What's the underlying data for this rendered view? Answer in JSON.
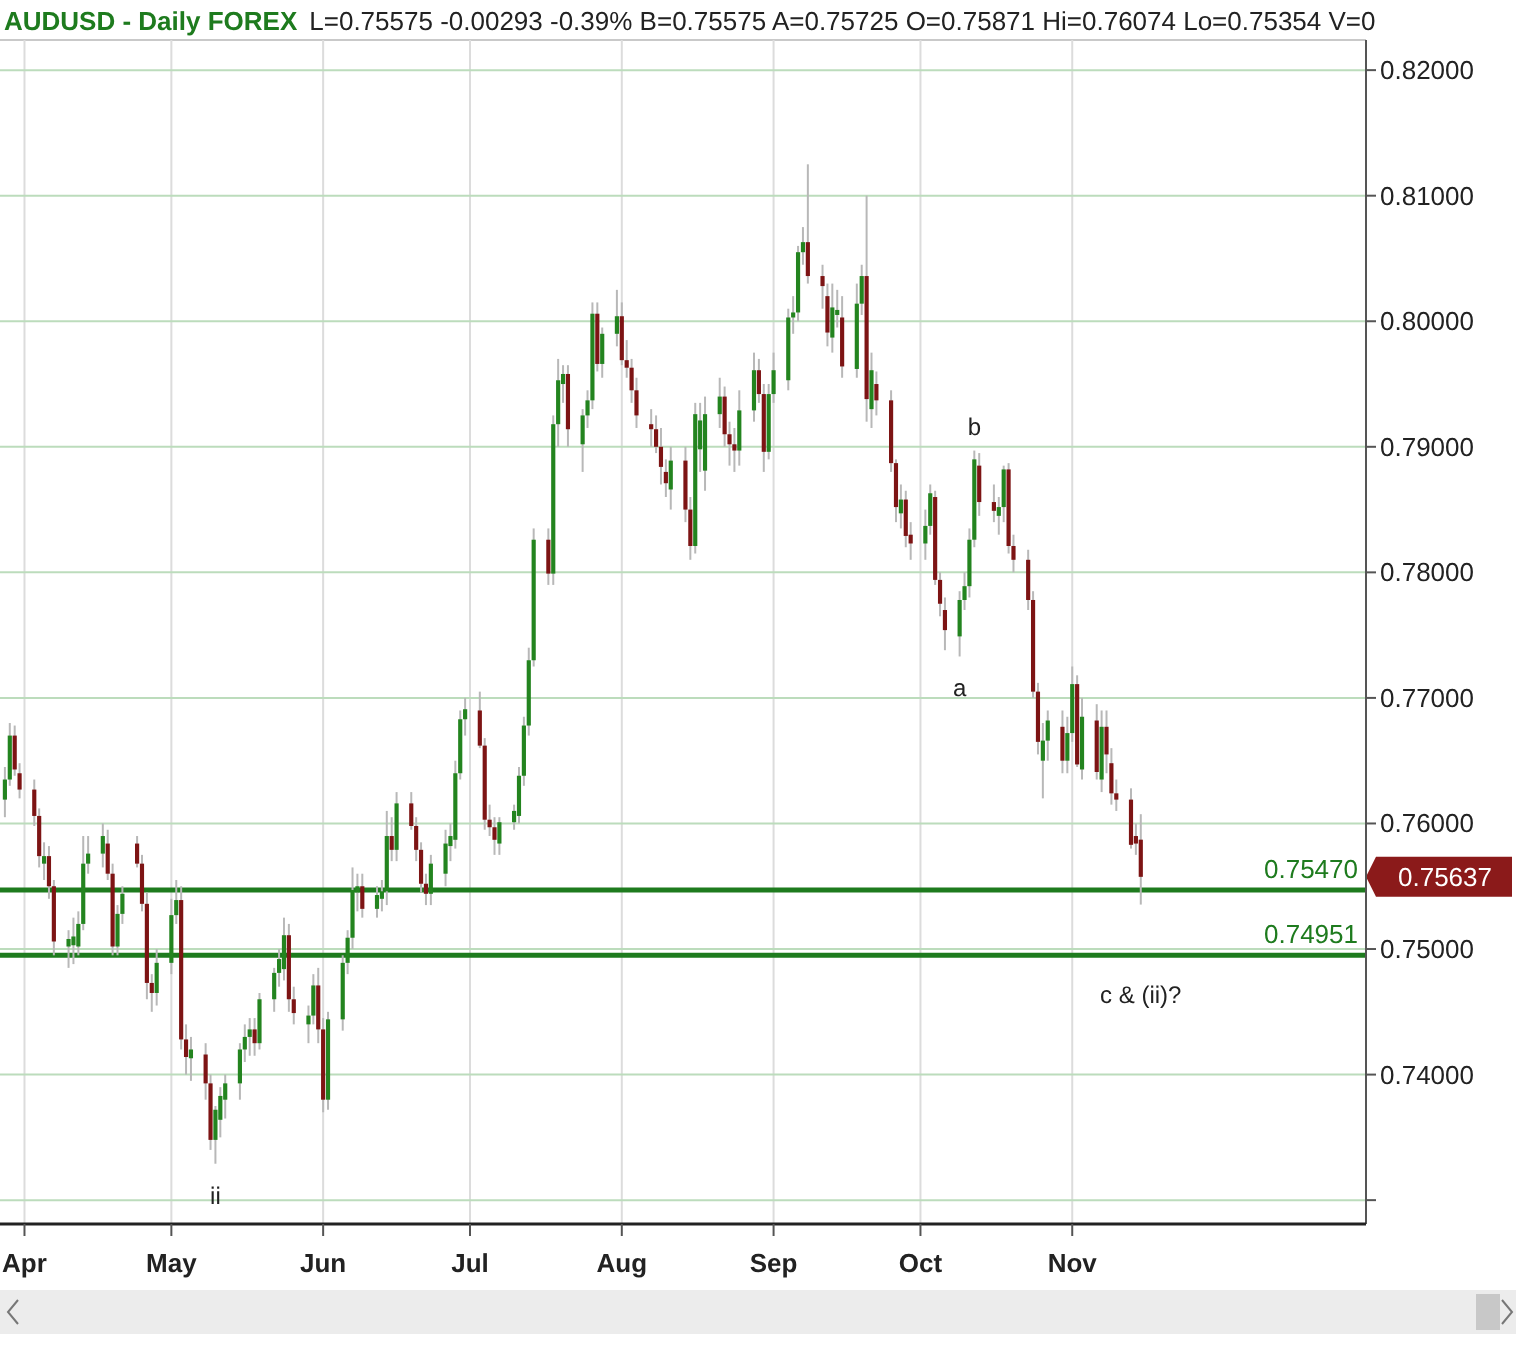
{
  "chart_data": {
    "type": "candlestick",
    "title": "AUDUSD - Daily FOREX",
    "subtitle": "L=0.75575 -0.00293 -0.39% B=0.75575 A=0.75725 O=0.75871 Hi=0.76074 Lo=0.75354 V=0",
    "colors": [
      "#23841f",
      "#23841f",
      "#7d1414",
      "#7d1414",
      "#7d1414",
      "#7d1414",
      "#23841f",
      "#7d1414",
      "#7d1414",
      "#23841f",
      "#23841f",
      "#23841f",
      "#23841f",
      "#23841f",
      "#23841f",
      "#7d1414",
      "#7d1414",
      "#23841f",
      "#23841f",
      "#7d1414",
      "#7d1414",
      "#7d1414",
      "#7d1414",
      "#23841f",
      "#23841f",
      "#23841f",
      "#7d1414",
      "#7d1414",
      "#23841f",
      "#7d1414",
      "#7d1414",
      "#23841f",
      "#23841f",
      "#23841f",
      "#23841f",
      "#23841f",
      "#23841f",
      "#7d1414",
      "#23841f",
      "#23841f",
      "#23841f",
      "#23841f",
      "#7d1414",
      "#7d1414",
      "#23841f",
      "#23841f",
      "#7d1414",
      "#7d1414",
      "#23841f",
      "#23841f",
      "#23841f",
      "#23841f",
      "#23841f",
      "#7d1414",
      "#23841f",
      "#23841f",
      "#23841f",
      "#7d1414",
      "#23841f",
      "#7d1414",
      "#7d1414",
      "#7d1414",
      "#7d1414",
      "#23841f",
      "#23841f",
      "#23841f",
      "#23841f",
      "#23841f",
      "#23841f",
      "#7d1414",
      "#7d1414",
      "#7d1414",
      "#7d1414",
      "#23841f",
      "#23841f",
      "#23841f",
      "#23841f",
      "#23841f",
      "#23841f",
      "#7d1414",
      "#23841f",
      "#23841f",
      "#23841f",
      "#7d1414",
      "#23841f",
      "#23841f",
      "#23841f",
      "#7d1414",
      "#23841f",
      "#23841f",
      "#7d1414",
      "#7d1414",
      "#7d1414",
      "#7d1414",
      "#7d1414",
      "#7d1414",
      "#7d1414",
      "#7d1414",
      "#23841f",
      "#7d1414",
      "#7d1414",
      "#23841f",
      "#23841f",
      "#23841f",
      "#23841f",
      "#7d1414",
      "#7d1414",
      "#7d1414",
      "#23841f",
      "#23841f",
      "#7d1414",
      "#7d1414",
      "#23841f",
      "#23841f",
      "#23841f",
      "#23841f",
      "#23841f",
      "#23841f",
      "#7d1414",
      "#7d1414",
      "#7d1414",
      "#23841f",
      "#23841f",
      "#7d1414",
      "#23841f",
      "#23841f",
      "#7d1414",
      "#23841f",
      "#7d1414",
      "#7d1414",
      "#7d1414",
      "#23841f",
      "#7d1414",
      "#7d1414",
      "#23841f",
      "#23841f",
      "#7d1414",
      "#7d1414",
      "#7d1414",
      "#23841f",
      "#23841f",
      "#23841f",
      "#23841f",
      "#7d1414",
      "#7d1414",
      "#23841f",
      "#23841f",
      "#7d1414",
      "#7d1414",
      "#7d1414",
      "#7d1414",
      "#7d1414",
      "#23841f",
      "#23841f",
      "#7d1414",
      "#23841f",
      "#23841f",
      "#7d1414",
      "#23841f",
      "#7d1414",
      "#23841f",
      "#7d1414",
      "#7d1414",
      "#7d1414",
      "#7d1414",
      "#7d1414",
      "#7d1414"
    ],
    "x": [
      "--03-28",
      "--03-29",
      "--03-30",
      "--03-31",
      "--04-03",
      "--04-04",
      "--04-05",
      "--04-06",
      "--04-07",
      "--04-10",
      "--04-11",
      "--04-12",
      "--04-13",
      "--04-14",
      "--04-17",
      "--04-18",
      "--04-19",
      "--04-20",
      "--04-21",
      "--04-24",
      "--04-25",
      "--04-26",
      "--04-27",
      "--04-28",
      "--05-01",
      "--05-02",
      "--05-03",
      "--05-04",
      "--05-05",
      "--05-08",
      "--05-09",
      "--05-10",
      "--05-11",
      "--05-12",
      "--05-15",
      "--05-16",
      "--05-17",
      "--05-18",
      "--05-19",
      "--05-22",
      "--05-23",
      "--05-24",
      "--05-25",
      "--05-26",
      "--05-29",
      "--05-30",
      "--05-31",
      "--06-01",
      "--06-02",
      "--06-05",
      "--06-06",
      "--06-07",
      "--06-08",
      "--06-09",
      "--06-12",
      "--06-13",
      "--06-14",
      "--06-15",
      "--06-16",
      "--06-19",
      "--06-20",
      "--06-21",
      "--06-22",
      "--06-23",
      "--06-26",
      "--06-27",
      "--06-28",
      "--06-29",
      "--06-30",
      "--07-03",
      "--07-04",
      "--07-05",
      "--07-06",
      "--07-07",
      "--07-10",
      "--07-11",
      "--07-12",
      "--07-13",
      "--07-14",
      "--07-17",
      "--07-18",
      "--07-19",
      "--07-20",
      "--07-21",
      "--07-24",
      "--07-25",
      "--07-26",
      "--07-27",
      "--07-28",
      "--07-31",
      "--08-01",
      "--08-02",
      "--08-03",
      "--08-04",
      "--08-07",
      "--08-08",
      "--08-09",
      "--08-10",
      "--08-11",
      "--08-14",
      "--08-15",
      "--08-16",
      "--08-17",
      "--08-18",
      "--08-21",
      "--08-22",
      "--08-23",
      "--08-24",
      "--08-25",
      "--08-28",
      "--08-29",
      "--08-30",
      "--08-31",
      "--09-01",
      "--09-04",
      "--09-05",
      "--09-06",
      "--09-07",
      "--09-08",
      "--09-11",
      "--09-12",
      "--09-13",
      "--09-14",
      "--09-15",
      "--09-18",
      "--09-19",
      "--09-20",
      "--09-21",
      "--09-22",
      "--09-25",
      "--09-26",
      "--09-27",
      "--09-28",
      "--09-29",
      "--10-02",
      "--10-03",
      "--10-04",
      "--10-05",
      "--10-06",
      "--10-09",
      "--10-10",
      "--10-11",
      "--10-12",
      "--10-13",
      "--10-16",
      "--10-17",
      "--10-18",
      "--10-19",
      "--10-20",
      "--10-23",
      "--10-24",
      "--10-25",
      "--10-26",
      "--10-27",
      "--10-30",
      "--10-31",
      "--11-01",
      "--11-02",
      "--11-03",
      "--11-06",
      "--11-07",
      "--11-08",
      "--11-09",
      "--11-10",
      "--11-13",
      "--11-14",
      "--11-15"
    ],
    "ohlc": [
      [
        0.7619,
        0.7645,
        0.7605,
        0.7635
      ],
      [
        0.7635,
        0.768,
        0.763,
        0.767
      ],
      [
        0.767,
        0.7678,
        0.7638,
        0.7643
      ],
      [
        0.764,
        0.7648,
        0.762,
        0.7627
      ],
      [
        0.7627,
        0.7635,
        0.7598,
        0.7606
      ],
      [
        0.7606,
        0.7612,
        0.7565,
        0.7574
      ],
      [
        0.7568,
        0.7585,
        0.7555,
        0.7574
      ],
      [
        0.7574,
        0.7582,
        0.754,
        0.755
      ],
      [
        0.755,
        0.7555,
        0.7495,
        0.7506
      ],
      [
        0.7502,
        0.7515,
        0.7485,
        0.7508
      ],
      [
        0.7503,
        0.7525,
        0.7488,
        0.751
      ],
      [
        0.7502,
        0.753,
        0.7495,
        0.752
      ],
      [
        0.752,
        0.759,
        0.7515,
        0.7568
      ],
      [
        0.7568,
        0.759,
        0.756,
        0.7576
      ],
      [
        0.7576,
        0.76,
        0.7565,
        0.759
      ],
      [
        0.7584,
        0.7595,
        0.7555,
        0.756
      ],
      [
        0.756,
        0.7568,
        0.7495,
        0.7502
      ],
      [
        0.7502,
        0.7535,
        0.7495,
        0.7528
      ],
      [
        0.7528,
        0.755,
        0.752,
        0.7544
      ],
      [
        0.7584,
        0.759,
        0.7565,
        0.7568
      ],
      [
        0.7568,
        0.7575,
        0.753,
        0.7536
      ],
      [
        0.7536,
        0.7545,
        0.746,
        0.7473
      ],
      [
        0.7473,
        0.748,
        0.745,
        0.7465
      ],
      [
        0.7465,
        0.75,
        0.7455,
        0.7489
      ],
      [
        0.7489,
        0.754,
        0.748,
        0.7527
      ],
      [
        0.7527,
        0.7555,
        0.752,
        0.7539
      ],
      [
        0.7539,
        0.755,
        0.742,
        0.7428
      ],
      [
        0.7428,
        0.744,
        0.74,
        0.7414
      ],
      [
        0.7413,
        0.743,
        0.7395,
        0.742
      ],
      [
        0.7416,
        0.7425,
        0.738,
        0.7393
      ],
      [
        0.7393,
        0.74,
        0.734,
        0.7348
      ],
      [
        0.7348,
        0.7375,
        0.7329,
        0.7372
      ],
      [
        0.7364,
        0.739,
        0.735,
        0.7383
      ],
      [
        0.738,
        0.74,
        0.7365,
        0.7393
      ],
      [
        0.7393,
        0.7425,
        0.738,
        0.742
      ],
      [
        0.742,
        0.744,
        0.741,
        0.743
      ],
      [
        0.743,
        0.7445,
        0.7415,
        0.7436
      ],
      [
        0.7436,
        0.7445,
        0.7415,
        0.7425
      ],
      [
        0.7425,
        0.7465,
        0.742,
        0.746
      ],
      [
        0.746,
        0.7485,
        0.745,
        0.7481
      ],
      [
        0.7481,
        0.75,
        0.747,
        0.7492
      ],
      [
        0.7484,
        0.7525,
        0.7475,
        0.7511
      ],
      [
        0.7511,
        0.752,
        0.745,
        0.746
      ],
      [
        0.746,
        0.747,
        0.744,
        0.7449
      ],
      [
        0.744,
        0.7455,
        0.7425,
        0.7447
      ],
      [
        0.7447,
        0.748,
        0.744,
        0.7471
      ],
      [
        0.7471,
        0.7485,
        0.7425,
        0.7436
      ],
      [
        0.7436,
        0.7445,
        0.737,
        0.738
      ],
      [
        0.738,
        0.745,
        0.7372,
        0.7444
      ],
      [
        0.7444,
        0.7495,
        0.7435,
        0.7489
      ],
      [
        0.7489,
        0.7515,
        0.748,
        0.7509
      ],
      [
        0.7509,
        0.7565,
        0.75,
        0.7547
      ],
      [
        0.7545,
        0.756,
        0.753,
        0.755
      ],
      [
        0.755,
        0.756,
        0.7525,
        0.7532
      ],
      [
        0.7532,
        0.755,
        0.7525,
        0.7543
      ],
      [
        0.754,
        0.7555,
        0.753,
        0.7546
      ],
      [
        0.7546,
        0.761,
        0.7535,
        0.759
      ],
      [
        0.759,
        0.7605,
        0.757,
        0.7579
      ],
      [
        0.7579,
        0.7625,
        0.757,
        0.7616
      ],
      [
        0.7616,
        0.7625,
        0.7595,
        0.7598
      ],
      [
        0.7598,
        0.7605,
        0.757,
        0.7579
      ],
      [
        0.7579,
        0.7585,
        0.7545,
        0.7552
      ],
      [
        0.7552,
        0.756,
        0.7535,
        0.7544
      ],
      [
        0.7544,
        0.7575,
        0.7535,
        0.7568
      ],
      [
        0.756,
        0.7595,
        0.755,
        0.7584
      ],
      [
        0.7582,
        0.76,
        0.757,
        0.759
      ],
      [
        0.7587,
        0.765,
        0.758,
        0.764
      ],
      [
        0.764,
        0.769,
        0.7635,
        0.7683
      ],
      [
        0.7683,
        0.77,
        0.767,
        0.7691
      ],
      [
        0.769,
        0.7705,
        0.766,
        0.7662
      ],
      [
        0.7662,
        0.7668,
        0.7595,
        0.7603
      ],
      [
        0.7603,
        0.7615,
        0.759,
        0.7597
      ],
      [
        0.7597,
        0.7605,
        0.7575,
        0.7587
      ],
      [
        0.7584,
        0.7605,
        0.7575,
        0.7601
      ],
      [
        0.7601,
        0.7615,
        0.7595,
        0.761
      ],
      [
        0.7606,
        0.7645,
        0.76,
        0.7638
      ],
      [
        0.7638,
        0.7685,
        0.763,
        0.7678
      ],
      [
        0.7678,
        0.774,
        0.767,
        0.773
      ],
      [
        0.773,
        0.7835,
        0.7725,
        0.7826
      ],
      [
        0.7826,
        0.7835,
        0.779,
        0.7799
      ],
      [
        0.7799,
        0.7925,
        0.779,
        0.7918
      ],
      [
        0.7918,
        0.797,
        0.79,
        0.7953
      ],
      [
        0.795,
        0.7965,
        0.7935,
        0.7958
      ],
      [
        0.7958,
        0.7965,
        0.79,
        0.7914
      ],
      [
        0.7902,
        0.793,
        0.788,
        0.7925
      ],
      [
        0.7925,
        0.7945,
        0.7915,
        0.7937
      ],
      [
        0.7937,
        0.8015,
        0.793,
        0.8006
      ],
      [
        0.8006,
        0.8015,
        0.796,
        0.7966
      ],
      [
        0.7966,
        0.7995,
        0.7955,
        0.799
      ],
      [
        0.799,
        0.8025,
        0.798,
        0.8004
      ],
      [
        0.8004,
        0.8015,
        0.7965,
        0.7969
      ],
      [
        0.7969,
        0.7985,
        0.7955,
        0.7963
      ],
      [
        0.7963,
        0.797,
        0.7935,
        0.7945
      ],
      [
        0.7945,
        0.7955,
        0.7915,
        0.7925
      ],
      [
        0.7918,
        0.793,
        0.79,
        0.7914
      ],
      [
        0.7914,
        0.7925,
        0.7895,
        0.79
      ],
      [
        0.79,
        0.7915,
        0.787,
        0.7884
      ],
      [
        0.788,
        0.789,
        0.786,
        0.7871
      ],
      [
        0.7866,
        0.79,
        0.785,
        0.7889
      ],
      [
        0.7889,
        0.79,
        0.784,
        0.785
      ],
      [
        0.785,
        0.786,
        0.781,
        0.7821
      ],
      [
        0.7821,
        0.7935,
        0.7815,
        0.7926
      ],
      [
        0.7898,
        0.7935,
        0.788,
        0.7921
      ],
      [
        0.7881,
        0.794,
        0.7865,
        0.7926
      ],
      [
        0.7926,
        0.7955,
        0.7915,
        0.794
      ],
      [
        0.794,
        0.7948,
        0.79,
        0.791
      ],
      [
        0.791,
        0.792,
        0.7885,
        0.7902
      ],
      [
        0.7902,
        0.7915,
        0.788,
        0.7897
      ],
      [
        0.7897,
        0.7945,
        0.7885,
        0.7929
      ],
      [
        0.7929,
        0.7975,
        0.792,
        0.7961
      ],
      [
        0.7961,
        0.797,
        0.7935,
        0.7942
      ],
      [
        0.7942,
        0.795,
        0.788,
        0.7896
      ],
      [
        0.7896,
        0.795,
        0.789,
        0.7942
      ],
      [
        0.7942,
        0.7975,
        0.7935,
        0.7961
      ],
      [
        0.7953,
        0.801,
        0.7945,
        0.8003
      ],
      [
        0.8003,
        0.802,
        0.799,
        0.8007
      ],
      [
        0.8007,
        0.806,
        0.8,
        0.8055
      ],
      [
        0.8055,
        0.8075,
        0.8045,
        0.8063
      ],
      [
        0.8063,
        0.8125,
        0.803,
        0.8036
      ],
      [
        0.8036,
        0.8045,
        0.801,
        0.8028
      ],
      [
        0.802,
        0.803,
        0.798,
        0.7991
      ],
      [
        0.7987,
        0.803,
        0.7975,
        0.8011
      ],
      [
        0.8005,
        0.8025,
        0.7995,
        0.8009
      ],
      [
        0.8003,
        0.802,
        0.7955,
        0.7964
      ],
      [
        0.7962,
        0.803,
        0.7955,
        0.8014
      ],
      [
        0.8014,
        0.8045,
        0.8005,
        0.8036
      ],
      [
        0.8036,
        0.81,
        0.792,
        0.7938
      ],
      [
        0.793,
        0.7975,
        0.7915,
        0.7961
      ],
      [
        0.795,
        0.796,
        0.7925,
        0.7937
      ],
      [
        0.7937,
        0.7945,
        0.788,
        0.7887
      ],
      [
        0.7887,
        0.789,
        0.784,
        0.7852
      ],
      [
        0.7847,
        0.787,
        0.7835,
        0.7858
      ],
      [
        0.7858,
        0.7865,
        0.782,
        0.7829
      ],
      [
        0.783,
        0.784,
        0.781,
        0.7823
      ],
      [
        0.7823,
        0.785,
        0.781,
        0.7837
      ],
      [
        0.7837,
        0.787,
        0.783,
        0.7863
      ],
      [
        0.786,
        0.7865,
        0.779,
        0.7794
      ],
      [
        0.7794,
        0.78,
        0.7765,
        0.7775
      ],
      [
        0.777,
        0.778,
        0.7738,
        0.7754
      ],
      [
        0.7749,
        0.7785,
        0.7733,
        0.7778
      ],
      [
        0.7778,
        0.78,
        0.777,
        0.7789
      ],
      [
        0.7789,
        0.7835,
        0.778,
        0.7826
      ],
      [
        0.7826,
        0.7897,
        0.782,
        0.789
      ],
      [
        0.7885,
        0.7895,
        0.7845,
        0.7856
      ],
      [
        0.7856,
        0.787,
        0.784,
        0.7849
      ],
      [
        0.7845,
        0.786,
        0.783,
        0.7852
      ],
      [
        0.7852,
        0.7885,
        0.784,
        0.7882
      ],
      [
        0.7882,
        0.7887,
        0.7815,
        0.7821
      ],
      [
        0.7821,
        0.783,
        0.78,
        0.781
      ],
      [
        0.781,
        0.7818,
        0.777,
        0.7778
      ],
      [
        0.7778,
        0.7785,
        0.77,
        0.7705
      ],
      [
        0.7705,
        0.7712,
        0.7655,
        0.7665
      ],
      [
        0.765,
        0.768,
        0.762,
        0.7666
      ],
      [
        0.7666,
        0.769,
        0.765,
        0.7682
      ],
      [
        0.7677,
        0.769,
        0.764,
        0.765
      ],
      [
        0.765,
        0.7685,
        0.764,
        0.7672
      ],
      [
        0.7672,
        0.7725,
        0.7665,
        0.7711
      ],
      [
        0.7711,
        0.7718,
        0.7645,
        0.7647
      ],
      [
        0.7643,
        0.77,
        0.7635,
        0.7685
      ],
      [
        0.7682,
        0.7695,
        0.7635,
        0.7641
      ],
      [
        0.7635,
        0.769,
        0.7625,
        0.7677
      ],
      [
        0.7677,
        0.769,
        0.764,
        0.7655
      ],
      [
        0.7648,
        0.766,
        0.7615,
        0.7624
      ],
      [
        0.7624,
        0.7635,
        0.761,
        0.7619
      ],
      [
        0.7619,
        0.7628,
        0.758,
        0.7583
      ],
      [
        0.759,
        0.76,
        0.7575,
        0.7584
      ],
      [
        0.75871,
        0.76074,
        0.75354,
        0.75575
      ]
    ],
    "xlim": [
      "--03-27",
      "--12-31"
    ],
    "xticks": [
      {
        "value": "--04-01",
        "label": "Apr"
      },
      {
        "value": "--05-01",
        "label": "May"
      },
      {
        "value": "--06-01",
        "label": "Jun"
      },
      {
        "value": "--07-01",
        "label": "Jul"
      },
      {
        "value": "--08-01",
        "label": "Aug"
      },
      {
        "value": "--09-01",
        "label": "Sep"
      },
      {
        "value": "--10-01",
        "label": "Oct"
      },
      {
        "value": "--11-01",
        "label": "Nov"
      }
    ],
    "ylim": [
      0.7281,
      0.8224
    ],
    "yticks": [
      {
        "value": 0.73,
        "label": null
      },
      {
        "value": 0.74,
        "label": "0.74000"
      },
      {
        "value": 0.75,
        "label": "0.75000"
      },
      {
        "value": 0.76,
        "label": "0.76000"
      },
      {
        "value": 0.77,
        "label": "0.77000"
      },
      {
        "value": 0.78,
        "label": "0.78000"
      },
      {
        "value": 0.79,
        "label": "0.79000"
      },
      {
        "value": 0.8,
        "label": "0.80000"
      },
      {
        "value": 0.81,
        "label": "0.81000"
      },
      {
        "value": 0.82,
        "label": "0.82000"
      }
    ],
    "grid": true,
    "ref_lines": [
      {
        "axis": "y",
        "value": 0.7547,
        "label": "0.75470",
        "color": "#1e7b1e"
      },
      {
        "axis": "y",
        "value": 0.74951,
        "label": "0.74951",
        "color": "#1e7b1e"
      }
    ],
    "annotations": [
      {
        "text": "ii",
        "x": "--05-10",
        "y": 0.7329
      },
      {
        "text": "a",
        "x": "--10-09",
        "y": 0.7733
      },
      {
        "text": "b",
        "x": "--10-12",
        "y": 0.7897
      },
      "c & (ii)?",
      "0.75637"
    ]
  }
}
